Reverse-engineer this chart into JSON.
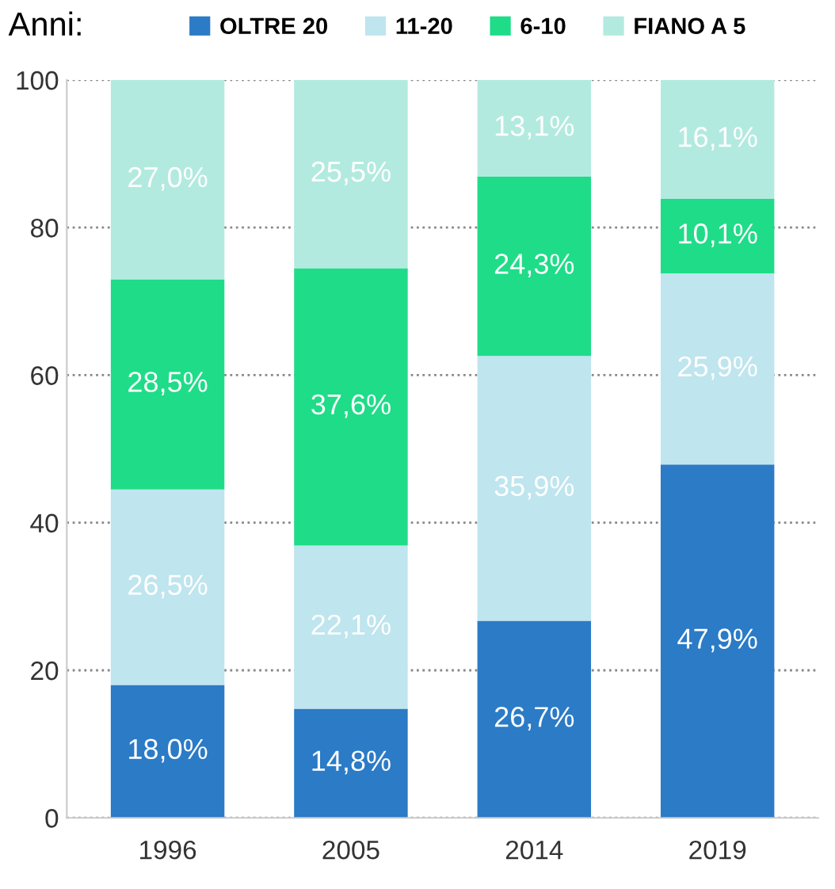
{
  "chart_data": {
    "type": "bar",
    "stacked": true,
    "legend_title": "Anni:",
    "legend": "top",
    "categories": [
      "1996",
      "2005",
      "2014",
      "2019"
    ],
    "series": [
      {
        "name": "OLTRE 20",
        "color": "#2b7bc6",
        "values": [
          18.0,
          14.8,
          26.7,
          47.9
        ],
        "value_labels": [
          "18,0%",
          "14,8%",
          "26,7%",
          "47,9%"
        ]
      },
      {
        "name": "11-20",
        "color": "#bfe5ee",
        "values": [
          26.5,
          22.1,
          35.9,
          25.9
        ],
        "value_labels": [
          "26,5%",
          "22,1%",
          "35,9%",
          "25,9%"
        ]
      },
      {
        "name": "6-10",
        "color": "#1fdc88",
        "values": [
          28.5,
          37.6,
          24.3,
          10.1
        ],
        "value_labels": [
          "28,5%",
          "37,6%",
          "24,3%",
          "10,1%"
        ]
      },
      {
        "name": "FIANO A 5",
        "color": "#b3eadf",
        "values": [
          27.0,
          25.5,
          13.1,
          16.1
        ],
        "value_labels": [
          "27,0%",
          "25,5%",
          "13,1%",
          "16,1%"
        ]
      }
    ],
    "ylim": [
      0,
      100
    ],
    "yticks": [
      0,
      20,
      40,
      60,
      80,
      100
    ],
    "grid": "y"
  }
}
